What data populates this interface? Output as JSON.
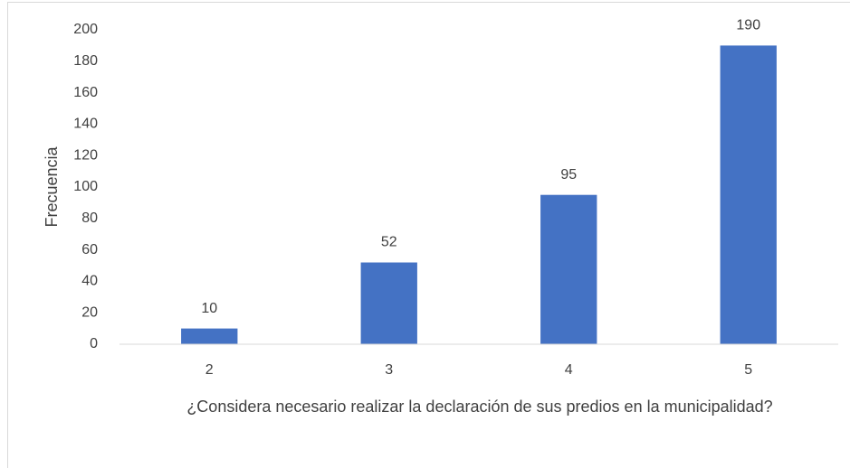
{
  "chart_data": {
    "type": "bar",
    "x_label": "¿Considera necesario realizar la declaración de sus predios en la municipalidad?",
    "y_label": "Frecuencia",
    "categories": [
      "2",
      "3",
      "4",
      "5"
    ],
    "values": [
      10,
      52,
      95,
      190
    ],
    "color": "#4472c4",
    "ylim": [
      0,
      200
    ],
    "yticks": [
      0,
      20,
      40,
      60,
      80,
      100,
      120,
      140,
      160,
      180,
      200
    ],
    "grid": false
  }
}
